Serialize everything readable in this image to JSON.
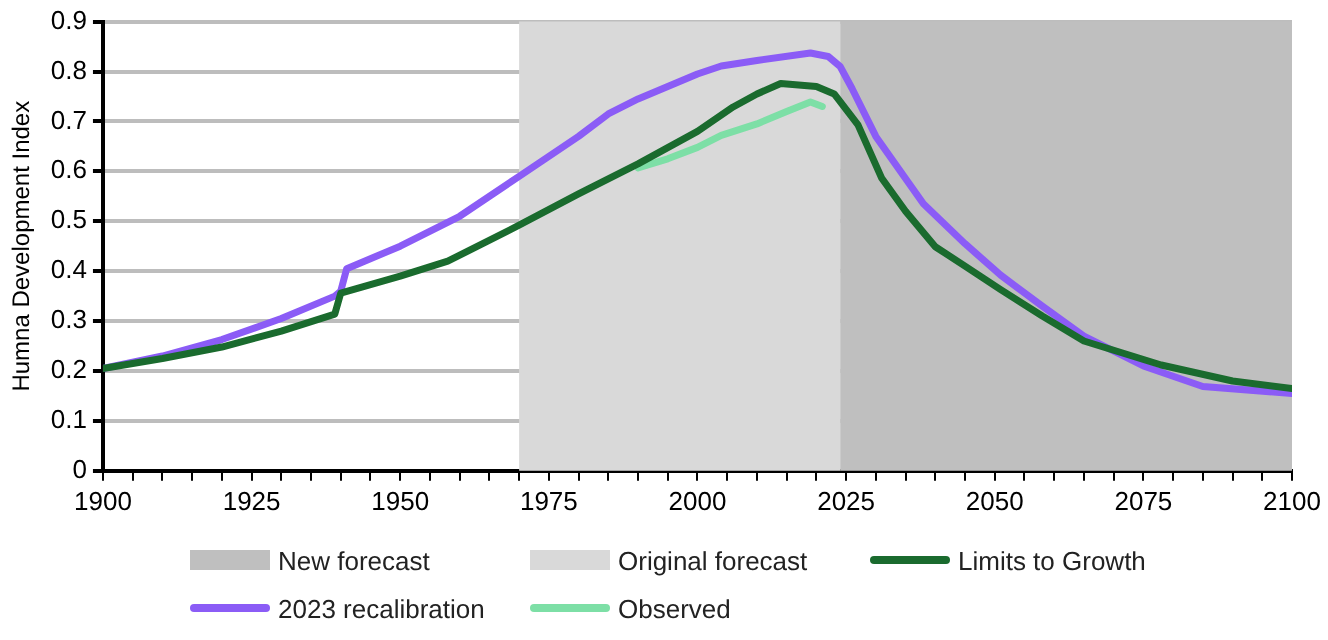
{
  "chart_data": {
    "type": "line",
    "ylabel": "Humna Development Index",
    "xlim": [
      1900,
      2100
    ],
    "ylim": [
      0,
      0.9
    ],
    "yticks": [
      0,
      0.1,
      0.2,
      0.3,
      0.4,
      0.5,
      0.6,
      0.7,
      0.8,
      0.9
    ],
    "xticks": [
      1900,
      {
        "value": 1905,
        "label": null
      },
      {
        "value": 1910,
        "label": null
      },
      {
        "value": 1915,
        "label": null
      },
      {
        "value": 1920,
        "label": null
      },
      1925,
      {
        "value": 1930,
        "label": null
      },
      {
        "value": 1935,
        "label": null
      },
      {
        "value": 1940,
        "label": null
      },
      {
        "value": 1945,
        "label": null
      },
      1950,
      {
        "value": 1955,
        "label": null
      },
      {
        "value": 1960,
        "label": null
      },
      {
        "value": 1965,
        "label": null
      },
      {
        "value": 1970,
        "label": null
      },
      1975,
      {
        "value": 1980,
        "label": null
      },
      {
        "value": 1985,
        "label": null
      },
      {
        "value": 1990,
        "label": null
      },
      {
        "value": 1995,
        "label": null
      },
      2000,
      {
        "value": 2005,
        "label": null
      },
      {
        "value": 2010,
        "label": null
      },
      {
        "value": 2015,
        "label": null
      },
      {
        "value": 2020,
        "label": null
      },
      2025,
      {
        "value": 2030,
        "label": null
      },
      {
        "value": 2035,
        "label": null
      },
      {
        "value": 2040,
        "label": null
      },
      {
        "value": 2045,
        "label": null
      },
      2050,
      {
        "value": 2055,
        "label": null
      },
      {
        "value": 2060,
        "label": null
      },
      {
        "value": 2065,
        "label": null
      },
      {
        "value": 2070,
        "label": null
      },
      2075,
      {
        "value": 2080,
        "label": null
      },
      {
        "value": 2085,
        "label": null
      },
      {
        "value": 2090,
        "label": null
      },
      {
        "value": 2095,
        "label": null
      },
      2100
    ],
    "grid": "y",
    "legend": "bottom",
    "marker": "none",
    "line_style": "solid",
    "bands": [
      {
        "axis": "x",
        "from": 2024,
        "to": 2100,
        "label": "New forecast",
        "color": "#bfbfbf"
      },
      {
        "axis": "x",
        "from": 1970,
        "to": 2024,
        "label": "Original forecast",
        "color": "#d9d9d9"
      }
    ],
    "series": [
      {
        "name": "Limits to Growth",
        "color": "#1a6b2e",
        "x": [
          1900,
          1910,
          1920,
          1930,
          1939,
          1940,
          1950,
          1958,
          1970,
          1980,
          1990,
          2000,
          2006,
          2010,
          2014,
          2020,
          2023,
          2027,
          2031,
          2035,
          2040,
          2045,
          2051,
          2058,
          2065,
          2078,
          2090,
          2100
        ],
        "values": [
          0.205,
          0.225,
          0.248,
          0.28,
          0.314,
          0.356,
          0.39,
          0.42,
          0.492,
          0.555,
          0.615,
          0.68,
          0.729,
          0.755,
          0.776,
          0.77,
          0.755,
          0.693,
          0.586,
          0.52,
          0.449,
          0.41,
          0.363,
          0.31,
          0.26,
          0.212,
          0.18,
          0.165
        ]
      },
      {
        "name": "2023 recalibration",
        "color": "#8b5cf6",
        "x": [
          1900,
          1910,
          1920,
          1930,
          1939,
          1940,
          1941,
          1950,
          1960,
          1970,
          1980,
          1985,
          1990,
          2000,
          2004,
          2010,
          2019,
          2022,
          2024,
          2026,
          2030,
          2038,
          2045,
          2051,
          2058,
          2065,
          2075,
          2085,
          2100
        ],
        "values": [
          0.205,
          0.23,
          0.263,
          0.305,
          0.35,
          0.36,
          0.405,
          0.45,
          0.51,
          0.59,
          0.67,
          0.715,
          0.745,
          0.795,
          0.811,
          0.822,
          0.837,
          0.83,
          0.81,
          0.766,
          0.67,
          0.535,
          0.455,
          0.392,
          0.33,
          0.27,
          0.21,
          0.169,
          0.155
        ]
      },
      {
        "name": "Observed",
        "color": "#7ddfa6",
        "x": [
          1990,
          1995,
          2000,
          2004,
          2010,
          2015,
          2019,
          2021
        ],
        "values": [
          0.607,
          0.625,
          0.648,
          0.672,
          0.695,
          0.72,
          0.739,
          0.73
        ]
      }
    ]
  }
}
